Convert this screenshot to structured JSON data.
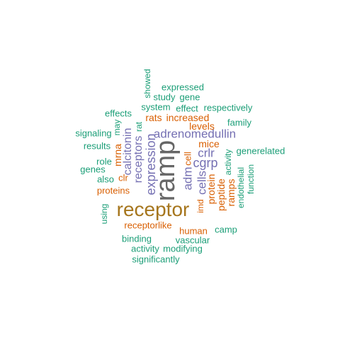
{
  "palette": {
    "teal": "#1b9e77",
    "orange": "#d95f02",
    "purple": "#7570b3",
    "gray": "#666666",
    "brown": "#a6761d"
  },
  "words": [
    {
      "text": "ramp",
      "color": "gray",
      "vertical": true
    },
    {
      "text": "receptor",
      "color": "brown",
      "vertical": false
    },
    {
      "text": "adrenomedullin",
      "color": "purple",
      "vertical": false
    },
    {
      "text": "expression",
      "color": "purple",
      "vertical": true
    },
    {
      "text": "calcitonin",
      "color": "purple",
      "vertical": true
    },
    {
      "text": "receptors",
      "color": "purple",
      "vertical": true
    },
    {
      "text": "cgrp",
      "color": "purple",
      "vertical": false
    },
    {
      "text": "crlr",
      "color": "purple",
      "vertical": false
    },
    {
      "text": "cells",
      "color": "purple",
      "vertical": true
    },
    {
      "text": "adm",
      "color": "purple",
      "vertical": true
    },
    {
      "text": "mrna",
      "color": "orange",
      "vertical": true
    },
    {
      "text": "increased",
      "color": "orange",
      "vertical": false
    },
    {
      "text": "levels",
      "color": "orange",
      "vertical": false
    },
    {
      "text": "rats",
      "color": "orange",
      "vertical": false
    },
    {
      "text": "mice",
      "color": "orange",
      "vertical": false
    },
    {
      "text": "protein",
      "color": "orange",
      "vertical": true
    },
    {
      "text": "peptide",
      "color": "orange",
      "vertical": true
    },
    {
      "text": "ramps",
      "color": "orange",
      "vertical": true
    },
    {
      "text": "cell",
      "color": "orange",
      "vertical": true
    },
    {
      "text": "proteins",
      "color": "orange",
      "vertical": false
    },
    {
      "text": "clr",
      "color": "orange",
      "vertical": false
    },
    {
      "text": "receptorlike",
      "color": "orange",
      "vertical": false
    },
    {
      "text": "human",
      "color": "orange",
      "vertical": false
    },
    {
      "text": "imd",
      "color": "orange",
      "vertical": true
    },
    {
      "text": "expressed",
      "color": "teal",
      "vertical": false
    },
    {
      "text": "showed",
      "color": "teal",
      "vertical": true
    },
    {
      "text": "study",
      "color": "teal",
      "vertical": false
    },
    {
      "text": "gene",
      "color": "teal",
      "vertical": false
    },
    {
      "text": "system",
      "color": "teal",
      "vertical": false
    },
    {
      "text": "effect",
      "color": "teal",
      "vertical": false
    },
    {
      "text": "respectively",
      "color": "teal",
      "vertical": false
    },
    {
      "text": "effects",
      "color": "teal",
      "vertical": false
    },
    {
      "text": "family",
      "color": "teal",
      "vertical": false
    },
    {
      "text": "may",
      "color": "teal",
      "vertical": true
    },
    {
      "text": "rat",
      "color": "teal",
      "vertical": true
    },
    {
      "text": "signaling",
      "color": "teal",
      "vertical": false
    },
    {
      "text": "results",
      "color": "teal",
      "vertical": false
    },
    {
      "text": "generelated",
      "color": "teal",
      "vertical": false
    },
    {
      "text": "role",
      "color": "teal",
      "vertical": false
    },
    {
      "text": "genes",
      "color": "teal",
      "vertical": false
    },
    {
      "text": "also",
      "color": "teal",
      "vertical": false
    },
    {
      "text": "activity",
      "color": "teal",
      "vertical": true
    },
    {
      "text": "endothelial",
      "color": "teal",
      "vertical": true
    },
    {
      "text": "function",
      "color": "teal",
      "vertical": true
    },
    {
      "text": "using",
      "color": "teal",
      "vertical": true
    },
    {
      "text": "camp",
      "color": "teal",
      "vertical": false
    },
    {
      "text": "binding",
      "color": "teal",
      "vertical": false
    },
    {
      "text": "vascular",
      "color": "teal",
      "vertical": false
    },
    {
      "text": "activity",
      "color": "teal",
      "vertical": false
    },
    {
      "text": "modifying",
      "color": "teal",
      "vertical": false
    },
    {
      "text": "significantly",
      "color": "teal",
      "vertical": false
    }
  ]
}
